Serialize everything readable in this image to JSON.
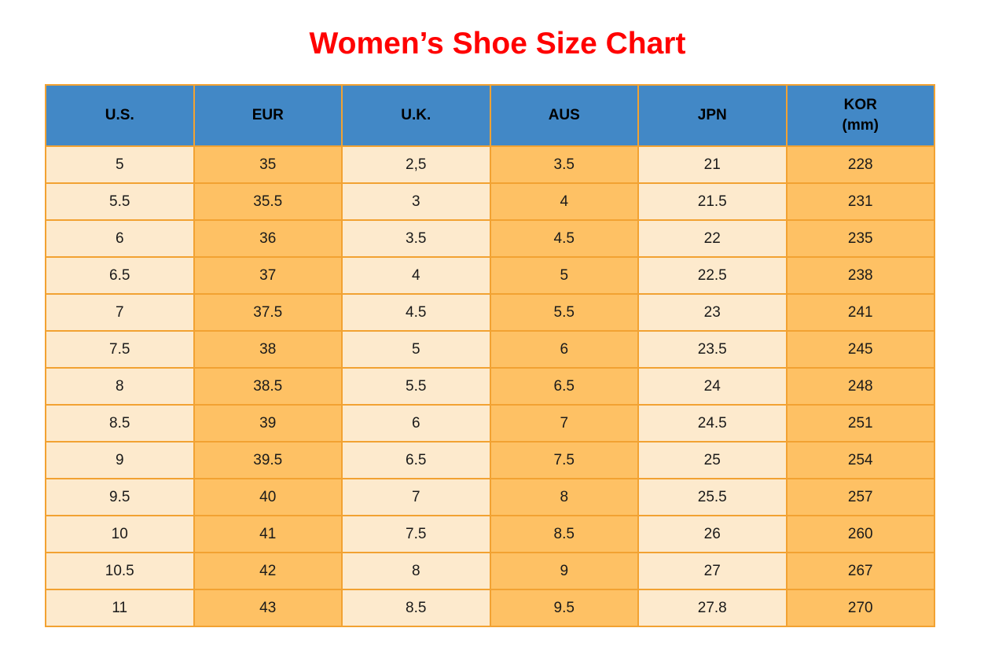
{
  "title": {
    "text": "Women’s Shoe Size Chart",
    "color": "#ff0000"
  },
  "colors": {
    "header_bg": "#4288c6",
    "row_light": "#fdeacd",
    "row_orange": "#fec164",
    "border": "#f2a232",
    "text": "#1a1a1a"
  },
  "chart_data": {
    "type": "table",
    "title": "Women’s Shoe Size Chart",
    "columns": [
      {
        "label": "U.S."
      },
      {
        "label": "EUR"
      },
      {
        "label": "U.K."
      },
      {
        "label": "AUS"
      },
      {
        "label": "JPN"
      },
      {
        "label": "KOR",
        "sublabel": "(mm)"
      }
    ],
    "rows": [
      [
        "5",
        "35",
        "2,5",
        "3.5",
        "21",
        "228"
      ],
      [
        "5.5",
        "35.5",
        "3",
        "4",
        "21.5",
        "231"
      ],
      [
        "6",
        "36",
        "3.5",
        "4.5",
        "22",
        "235"
      ],
      [
        "6.5",
        "37",
        "4",
        "5",
        "22.5",
        "238"
      ],
      [
        "7",
        "37.5",
        "4.5",
        "5.5",
        "23",
        "241"
      ],
      [
        "7.5",
        "38",
        "5",
        "6",
        "23.5",
        "245"
      ],
      [
        "8",
        "38.5",
        "5.5",
        "6.5",
        "24",
        "248"
      ],
      [
        "8.5",
        "39",
        "6",
        "7",
        "24.5",
        "251"
      ],
      [
        "9",
        "39.5",
        "6.5",
        "7.5",
        "25",
        "254"
      ],
      [
        "9.5",
        "40",
        "7",
        "8",
        "25.5",
        "257"
      ],
      [
        "10",
        "41",
        "7.5",
        "8.5",
        "26",
        "260"
      ],
      [
        "10.5",
        "42",
        "8",
        "9",
        "27",
        "267"
      ],
      [
        "11",
        "43",
        "8.5",
        "9.5",
        "27.8",
        "270"
      ]
    ]
  }
}
